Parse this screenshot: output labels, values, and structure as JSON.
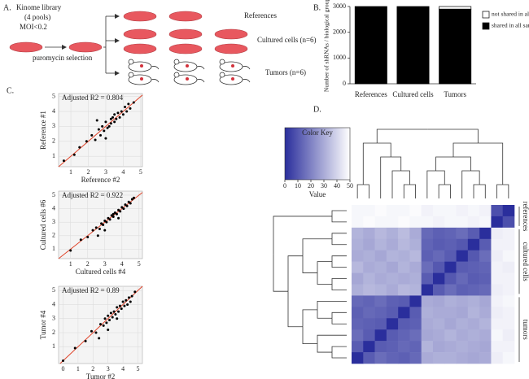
{
  "diagram": {
    "panel": "A.",
    "library": [
      "Kinome library",
      "(4 pools)",
      "MOI<0.2"
    ],
    "selection": "puromycin selection",
    "groups": [
      "References",
      "Cultured cells (n=6)",
      "Tumors (n=6)"
    ]
  },
  "chart_data": [
    {
      "type": "bar",
      "panel": "B.",
      "ylabel": "Number of shRNAs / biological group",
      "categories": [
        "References",
        "Cultured cells",
        "Tumors"
      ],
      "series": [
        {
          "name": "shared in all samples",
          "color": "#000000",
          "values": [
            3000,
            3000,
            2900
          ]
        },
        {
          "name": "not shared in all samples",
          "color": "#ffffff",
          "values": [
            0,
            0,
            100
          ]
        }
      ],
      "ylim": [
        0,
        3000
      ],
      "yticks": [
        0,
        1000,
        2000,
        3000
      ]
    },
    {
      "type": "scatter",
      "panel": "C.",
      "title": "Adjusted R2 = 0.804",
      "xlabel": "Reference #2",
      "ylabel": "Reference #1",
      "color": "#000000",
      "line_color": "#e0452b",
      "x": [
        0.6,
        1.2,
        1.5,
        1.9,
        2.2,
        2.4,
        2.6,
        2.7,
        2.8,
        2.9,
        3.0,
        3.1,
        3.2,
        3.3,
        3.3,
        3.4,
        3.5,
        3.5,
        3.6,
        3.7,
        3.8,
        3.9,
        4.0,
        4.1,
        4.2,
        4.3,
        4.4,
        4.6,
        2.5,
        3.0
      ],
      "y": [
        0.7,
        1.1,
        1.6,
        2.0,
        2.4,
        2.1,
        2.8,
        2.4,
        3.0,
        2.7,
        3.3,
        2.9,
        3.0,
        3.5,
        3.2,
        3.6,
        3.3,
        3.8,
        3.5,
        3.9,
        3.6,
        4.0,
        3.8,
        4.3,
        4.0,
        4.5,
        4.2,
        4.6,
        3.4,
        2.2
      ],
      "xlim": [
        0.3,
        5.1
      ],
      "ylim": [
        0.3,
        5.2
      ],
      "xticks": [
        1,
        2,
        3,
        4,
        5
      ],
      "yticks": [
        1,
        2,
        3,
        4,
        5
      ]
    },
    {
      "type": "scatter",
      "title": "Adjusted R2 = 0.922",
      "xlabel": "Cultured cells #4",
      "ylabel": "Cultured cells #6",
      "color": "#000000",
      "line_color": "#e0452b",
      "x": [
        1.0,
        1.6,
        2.0,
        2.3,
        2.5,
        2.7,
        2.8,
        2.9,
        3.0,
        3.1,
        3.2,
        3.3,
        3.4,
        3.5,
        3.5,
        3.6,
        3.7,
        3.8,
        3.9,
        4.0,
        4.1,
        4.2,
        4.3,
        4.4,
        4.5,
        4.6,
        4.7,
        2.6,
        3.0,
        3.8
      ],
      "y": [
        0.9,
        1.7,
        1.9,
        2.4,
        2.6,
        2.5,
        2.9,
        2.8,
        3.1,
        3.0,
        3.3,
        3.2,
        3.5,
        3.4,
        3.6,
        3.7,
        3.6,
        3.9,
        3.8,
        4.1,
        4.0,
        4.3,
        4.2,
        4.5,
        4.4,
        4.7,
        4.8,
        2.0,
        2.4,
        3.3
      ],
      "xlim": [
        0.3,
        5.2
      ],
      "ylim": [
        0.3,
        5.3
      ],
      "xticks": [
        1,
        2,
        3,
        4,
        5
      ],
      "yticks": [
        1,
        2,
        3,
        4,
        5
      ]
    },
    {
      "type": "scatter",
      "title": "Adjusted R2 = 0.89",
      "xlabel": "Tumor #2",
      "ylabel": "Tumor #4",
      "color": "#000000",
      "line_color": "#e0452b",
      "x": [
        0.0,
        0.8,
        1.5,
        1.9,
        2.2,
        2.5,
        2.7,
        2.8,
        2.9,
        3.0,
        3.1,
        3.2,
        3.3,
        3.4,
        3.5,
        3.6,
        3.7,
        3.8,
        3.9,
        4.0,
        4.1,
        4.2,
        4.3,
        4.4,
        4.5,
        4.6,
        2.4,
        3.0,
        3.6,
        4.8
      ],
      "y": [
        0.0,
        0.9,
        1.4,
        2.1,
        2.0,
        2.6,
        2.5,
        3.0,
        2.7,
        3.2,
        2.9,
        3.4,
        3.1,
        3.5,
        3.3,
        3.8,
        3.5,
        3.9,
        3.7,
        4.2,
        3.9,
        4.3,
        4.0,
        4.5,
        4.2,
        4.6,
        1.6,
        2.2,
        3.0,
        4.9
      ],
      "xlim": [
        -0.3,
        5.3
      ],
      "ylim": [
        -0.2,
        5.3
      ],
      "xticks": [
        0,
        1,
        2,
        3,
        4,
        5
      ],
      "yticks": [
        1,
        2,
        3,
        4,
        5
      ]
    },
    {
      "type": "heatmap",
      "panel": "D.",
      "key_title": "Color Key",
      "key_label": "Value",
      "zlim": [
        0,
        50
      ],
      "zticks": [
        0,
        10,
        20,
        30,
        40,
        50
      ],
      "low_color": "#2a2e9c",
      "high_color": "#ffffff",
      "row_groups": [
        "references",
        "cultured cells",
        "tumors"
      ],
      "values": [
        [
          48,
          48,
          49,
          48,
          48,
          49,
          47,
          48,
          48,
          47,
          48,
          47,
          8,
          0
        ],
        [
          48,
          49,
          48,
          48,
          49,
          48,
          48,
          47,
          48,
          48,
          47,
          48,
          0,
          8
        ],
        [
          32,
          30,
          33,
          31,
          34,
          30,
          14,
          12,
          13,
          15,
          11,
          0,
          46,
          47
        ],
        [
          31,
          29,
          32,
          30,
          33,
          31,
          13,
          11,
          12,
          10,
          0,
          11,
          47,
          47
        ],
        [
          30,
          31,
          29,
          32,
          31,
          33,
          12,
          14,
          11,
          0,
          10,
          15,
          46,
          48
        ],
        [
          33,
          30,
          31,
          29,
          32,
          30,
          15,
          10,
          0,
          11,
          12,
          13,
          47,
          46
        ],
        [
          29,
          32,
          30,
          31,
          30,
          31,
          11,
          0,
          10,
          14,
          11,
          12,
          47,
          47
        ],
        [
          31,
          33,
          32,
          30,
          33,
          32,
          0,
          11,
          15,
          12,
          13,
          14,
          46,
          47
        ],
        [
          14,
          13,
          15,
          12,
          11,
          0,
          30,
          29,
          31,
          30,
          31,
          29,
          47,
          48
        ],
        [
          12,
          14,
          13,
          11,
          0,
          11,
          31,
          30,
          30,
          29,
          32,
          30,
          46,
          47
        ],
        [
          13,
          12,
          11,
          0,
          11,
          12,
          30,
          31,
          29,
          31,
          30,
          32,
          47,
          47
        ],
        [
          15,
          11,
          0,
          11,
          13,
          15,
          29,
          30,
          32,
          30,
          31,
          30,
          48,
          46
        ],
        [
          11,
          0,
          11,
          12,
          14,
          13,
          32,
          29,
          30,
          31,
          30,
          29,
          47,
          47
        ],
        [
          0,
          11,
          15,
          13,
          12,
          14,
          30,
          31,
          31,
          30,
          29,
          30,
          46,
          48
        ]
      ]
    }
  ]
}
